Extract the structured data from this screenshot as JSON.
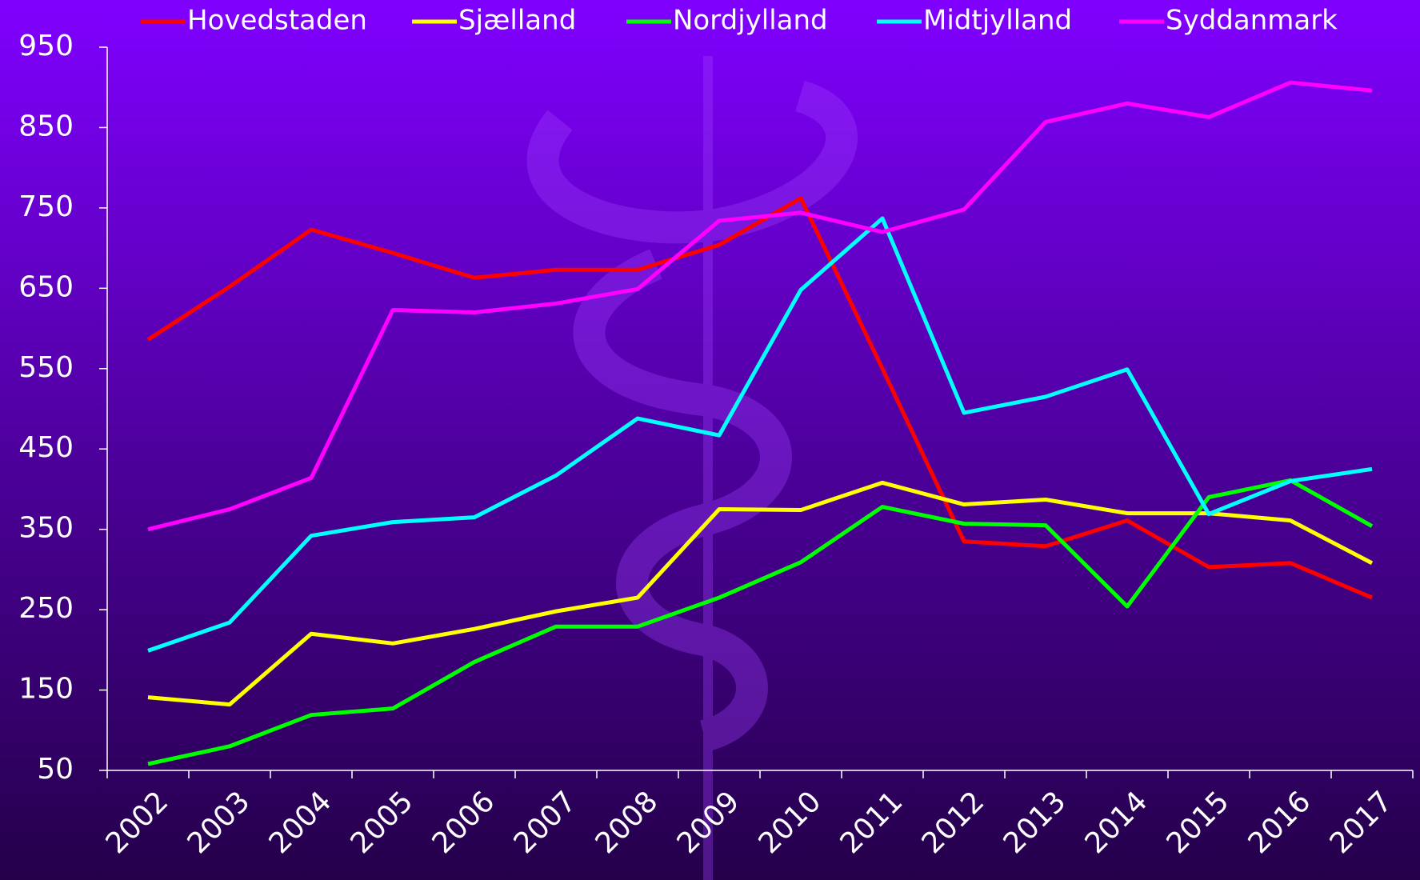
{
  "chart_data": {
    "type": "line",
    "categories": [
      "2002",
      "2003",
      "2004",
      "2005",
      "2006",
      "2007",
      "2008",
      "2009",
      "2010",
      "2011",
      "2012",
      "2013",
      "2014",
      "2015",
      "2016",
      "2017"
    ],
    "series": [
      {
        "name": "Hovedstaden",
        "color": "#ff0000",
        "values": [
          586,
          652,
          723,
          694,
          663,
          673,
          673,
          704,
          762,
          550,
          335,
          329,
          361,
          303,
          308,
          265
        ]
      },
      {
        "name": "Sjælland",
        "color": "#ffff00",
        "values": [
          141,
          132,
          220,
          208,
          226,
          248,
          265,
          375,
          374,
          408,
          381,
          387,
          370,
          370,
          361,
          308
        ]
      },
      {
        "name": "Nordjylland",
        "color": "#00ff00",
        "values": [
          58,
          80,
          119,
          127,
          185,
          229,
          229,
          265,
          309,
          378,
          357,
          355,
          254,
          390,
          411,
          354
        ]
      },
      {
        "name": "Midtjylland",
        "color": "#00ffff",
        "values": [
          199,
          234,
          342,
          359,
          365,
          417,
          488,
          467,
          648,
          737,
          495,
          515,
          549,
          369,
          410,
          425
        ]
      },
      {
        "name": "Syddanmark",
        "color": "#ff00ff",
        "values": [
          350,
          375,
          414,
          623,
          620,
          631,
          649,
          734,
          744,
          720,
          748,
          857,
          880,
          863,
          906,
          896
        ]
      }
    ],
    "ylim": [
      50,
      950
    ],
    "yticks": [
      50,
      150,
      250,
      350,
      450,
      550,
      650,
      750,
      850,
      950
    ],
    "grid": false,
    "legend": "top"
  }
}
